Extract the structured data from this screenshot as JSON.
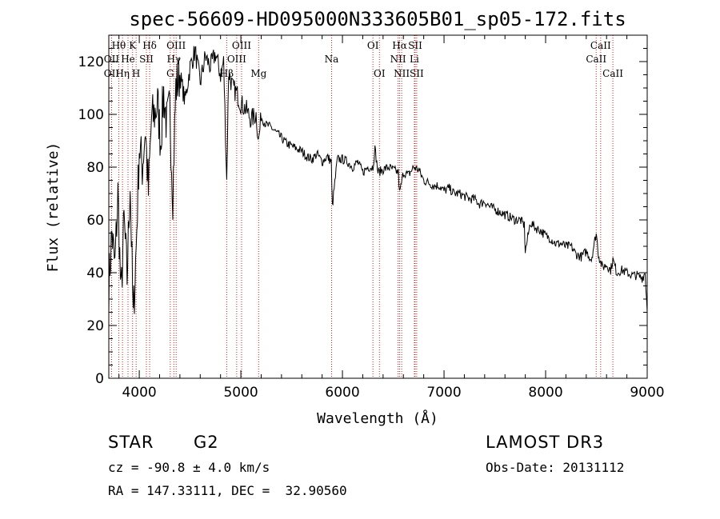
{
  "chart_data": {
    "type": "line",
    "title": "spec-56609-HD095000N333605B01_sp05-172.fits",
    "xlabel": "Wavelength (Å)",
    "ylabel": "Flux (relative)",
    "xlim": [
      3700,
      9000
    ],
    "ylim": [
      0,
      130
    ],
    "x_ticks": [
      4000,
      5000,
      6000,
      7000,
      8000,
      9000
    ],
    "y_ticks": [
      0,
      20,
      40,
      60,
      80,
      100,
      120
    ],
    "grid": false,
    "series": [
      {
        "name": "flux",
        "x": [
          3700,
          3730,
          3760,
          3790,
          3820,
          3850,
          3880,
          3910,
          3940,
          3970,
          4000,
          4030,
          4060,
          4090,
          4120,
          4150,
          4180,
          4210,
          4240,
          4270,
          4300,
          4330,
          4360,
          4400,
          4450,
          4500,
          4550,
          4600,
          4650,
          4700,
          4750,
          4800,
          4830,
          4861,
          4880,
          4920,
          4960,
          5000,
          5050,
          5100,
          5150,
          5175,
          5200,
          5250,
          5300,
          5350,
          5400,
          5450,
          5500,
          5550,
          5600,
          5650,
          5700,
          5750,
          5800,
          5850,
          5890,
          5900,
          5950,
          6000,
          6050,
          6100,
          6150,
          6200,
          6250,
          6300,
          6320,
          6350,
          6400,
          6450,
          6500,
          6550,
          6563,
          6600,
          6650,
          6700,
          6750,
          6800,
          6850,
          6900,
          6950,
          7000,
          7050,
          7100,
          7150,
          7200,
          7250,
          7300,
          7350,
          7400,
          7450,
          7500,
          7550,
          7600,
          7650,
          7700,
          7750,
          7790,
          7800,
          7850,
          7900,
          7950,
          8000,
          8050,
          8100,
          8150,
          8200,
          8250,
          8300,
          8350,
          8400,
          8450,
          8498,
          8520,
          8542,
          8560,
          8600,
          8640,
          8662,
          8700,
          8750,
          8800,
          8850,
          8900,
          8950,
          8980,
          9000
        ],
        "y": [
          35,
          55,
          42,
          70,
          30,
          60,
          38,
          75,
          22,
          50,
          88,
          80,
          95,
          70,
          98,
          100,
          104,
          90,
          108,
          96,
          102,
          70,
          110,
          115,
          105,
          118,
          124,
          112,
          122,
          118,
          123,
          115,
          120,
          75,
          116,
          110,
          108,
          104,
          102,
          98,
          100,
          90,
          99,
          96,
          95,
          93,
          91,
          89,
          88,
          87,
          86,
          84,
          83,
          85,
          82,
          84,
          82,
          65,
          83,
          83,
          82,
          80,
          82,
          78,
          80,
          80,
          87,
          78,
          79,
          80,
          79,
          78,
          70,
          78,
          77,
          80,
          79,
          75,
          74,
          73,
          73,
          71,
          72,
          70,
          70,
          69,
          68,
          68,
          66,
          67,
          65,
          64,
          63,
          62,
          61,
          60,
          60,
          58,
          48,
          59,
          57,
          56,
          54,
          53,
          51,
          51,
          50,
          50,
          47,
          46,
          48,
          45,
          55,
          47,
          44,
          42,
          43,
          41,
          45,
          40,
          41,
          40,
          39,
          39,
          38,
          40,
          25
        ]
      }
    ],
    "line_markers": [
      {
        "label": "Hθ",
        "x": 3798,
        "row": 1
      },
      {
        "label": "OII",
        "x": 3727,
        "row": 2
      },
      {
        "label": "OII",
        "x": 3727,
        "row": 3
      },
      {
        "label": "Hη",
        "x": 3835,
        "row": 3
      },
      {
        "label": "He",
        "x": 3889,
        "row": 2
      },
      {
        "label": "K",
        "x": 3934,
        "row": 1
      },
      {
        "label": "H",
        "x": 3969,
        "row": 3
      },
      {
        "label": "SII",
        "x": 4070,
        "row": 2
      },
      {
        "label": "Hδ",
        "x": 4102,
        "row": 1
      },
      {
        "label": "OIII",
        "x": 4363,
        "row": 1
      },
      {
        "label": "Hγ",
        "x": 4340,
        "row": 2
      },
      {
        "label": "G",
        "x": 4305,
        "row": 3
      },
      {
        "label": "Hβ",
        "x": 4861,
        "row": 3
      },
      {
        "label": "OIII",
        "x": 5007,
        "row": 1
      },
      {
        "label": "OIII",
        "x": 4959,
        "row": 2
      },
      {
        "label": "Mg",
        "x": 5175,
        "row": 3
      },
      {
        "label": "Na",
        "x": 5893,
        "row": 2
      },
      {
        "label": "OI",
        "x": 6300,
        "row": 1
      },
      {
        "label": "OI",
        "x": 6364,
        "row": 3
      },
      {
        "label": "Hα",
        "x": 6563,
        "row": 1
      },
      {
        "label": "NII",
        "x": 6548,
        "row": 2
      },
      {
        "label": "NII",
        "x": 6583,
        "row": 3
      },
      {
        "label": "SII",
        "x": 6716,
        "row": 1
      },
      {
        "label": "Li",
        "x": 6708,
        "row": 2
      },
      {
        "label": "SII",
        "x": 6731,
        "row": 3
      },
      {
        "label": "CaII",
        "x": 8542,
        "row": 1
      },
      {
        "label": "CaII",
        "x": 8498,
        "row": 2
      },
      {
        "label": "CaII",
        "x": 8662,
        "row": 3
      }
    ]
  },
  "info": {
    "class_label": "STAR",
    "subclass": "G2",
    "survey": "LAMOST DR3",
    "redshift": "cz = -90.8 ± 4.0 km/s",
    "obs_date": "Obs-Date: 20131112",
    "coords": "RA = 147.33111, DEC =  32.90560"
  },
  "colors": {
    "spectrum": "#000000",
    "marker_line": "#cc2222",
    "axis": "#000000"
  }
}
